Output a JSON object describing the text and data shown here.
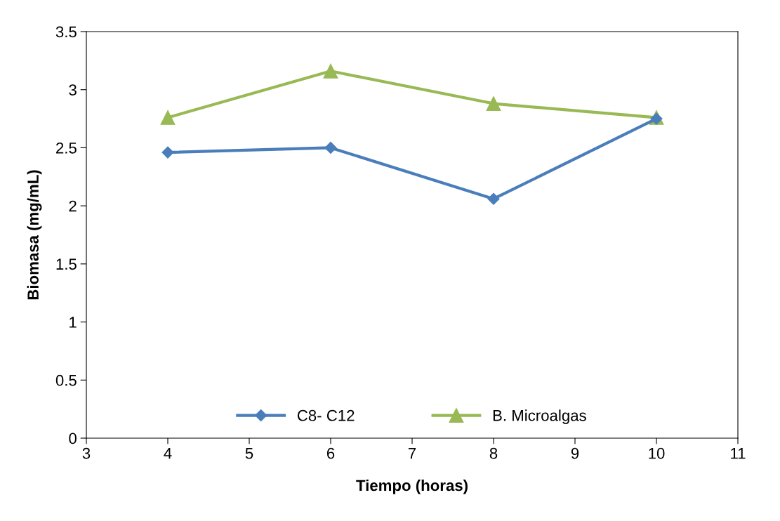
{
  "chart_data": {
    "type": "line",
    "xlabel": "Tiempo (horas)",
    "ylabel": "Biomasa (mg/mL)",
    "x": [
      4,
      6,
      8,
      10
    ],
    "series": [
      {
        "name": "C8- C12",
        "color": "#4a7ebb",
        "values": [
          2.46,
          2.5,
          2.06,
          2.75
        ],
        "marker": "diamond"
      },
      {
        "name": "B. Microalgas",
        "color": "#98b954",
        "values": [
          2.76,
          3.16,
          2.88,
          2.76
        ],
        "marker": "triangle"
      }
    ],
    "xlim": [
      3,
      11
    ],
    "xticks": [
      3,
      4,
      5,
      6,
      7,
      8,
      9,
      10,
      11
    ],
    "ylim": [
      0,
      3.5
    ],
    "yticks": [
      0,
      0.5,
      1,
      1.5,
      2,
      2.5,
      3,
      3.5
    ],
    "grid": false,
    "legend": "bottom",
    "line_style": "solid"
  }
}
